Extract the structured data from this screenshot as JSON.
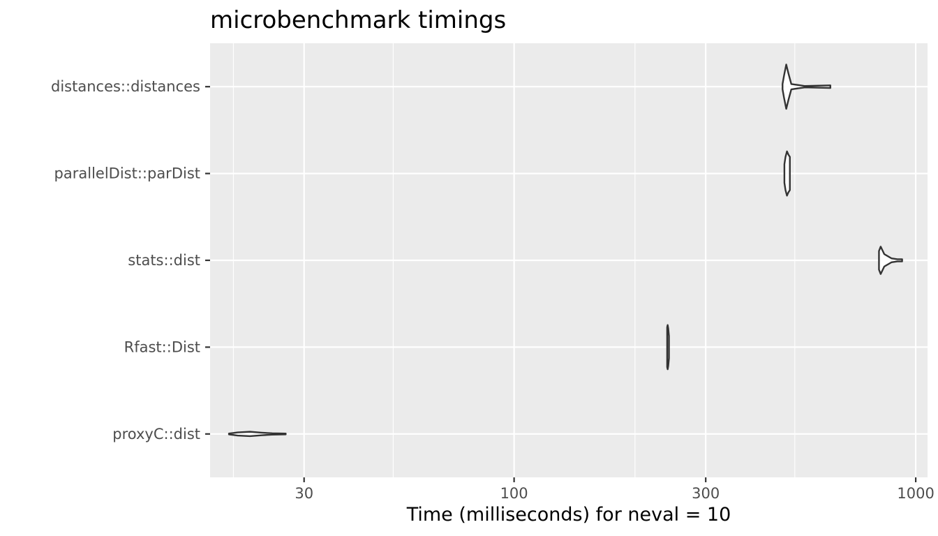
{
  "chart_data": {
    "type": "violin",
    "title": "microbenchmark timings",
    "xlabel": "Time (milliseconds) for neval = 10",
    "ylabel": "",
    "x_scale": "log10",
    "xlim": [
      17.5,
      1070
    ],
    "x_ticks": [
      30,
      100,
      300,
      1000
    ],
    "x_tick_labels": [
      "30",
      "100",
      "300",
      "1000"
    ],
    "x_minor_ticks": [
      20,
      50,
      200,
      500
    ],
    "grid": true,
    "background": "#ebebeb",
    "grid_color": "#ffffff",
    "outline_color": "#333333",
    "categories": [
      "distances::distances",
      "parallelDist::parDist",
      "stats::dist",
      "Rfast::Dist",
      "proxyC::dist"
    ],
    "series": [
      {
        "category": "distances::distances",
        "min": 466,
        "max": 613,
        "profile": [
          [
            466,
            0.12
          ],
          [
            470,
            0.5
          ],
          [
            476,
            1.0
          ],
          [
            482,
            0.6
          ],
          [
            490,
            0.12
          ],
          [
            530,
            0.03
          ],
          [
            613,
            0.06
          ]
        ]
      },
      {
        "category": "parallelDist::parDist",
        "min": 471,
        "max": 486,
        "profile": [
          [
            471,
            0.42
          ],
          [
            474,
            0.75
          ],
          [
            478,
            1.0
          ],
          [
            482,
            0.85
          ],
          [
            486,
            0.75
          ]
        ]
      },
      {
        "category": "stats::dist",
        "min": 810,
        "max": 925,
        "profile": [
          [
            810,
            0.42
          ],
          [
            818,
            0.62
          ],
          [
            835,
            0.28
          ],
          [
            870,
            0.09
          ],
          [
            900,
            0.05
          ],
          [
            925,
            0.05
          ]
        ]
      },
      {
        "category": "Rfast::Dist",
        "min": 240.5,
        "max": 243,
        "profile": [
          [
            240.5,
            0.9
          ],
          [
            241.2,
            1.0
          ],
          [
            242,
            0.85
          ],
          [
            243,
            0.5
          ]
        ]
      },
      {
        "category": "proxyC::dist",
        "min": 19.5,
        "max": 27,
        "profile": [
          [
            19.5,
            0.02
          ],
          [
            20.5,
            0.07
          ],
          [
            22,
            0.1
          ],
          [
            23.5,
            0.06
          ],
          [
            25,
            0.03
          ],
          [
            27,
            0.02
          ]
        ]
      }
    ]
  }
}
